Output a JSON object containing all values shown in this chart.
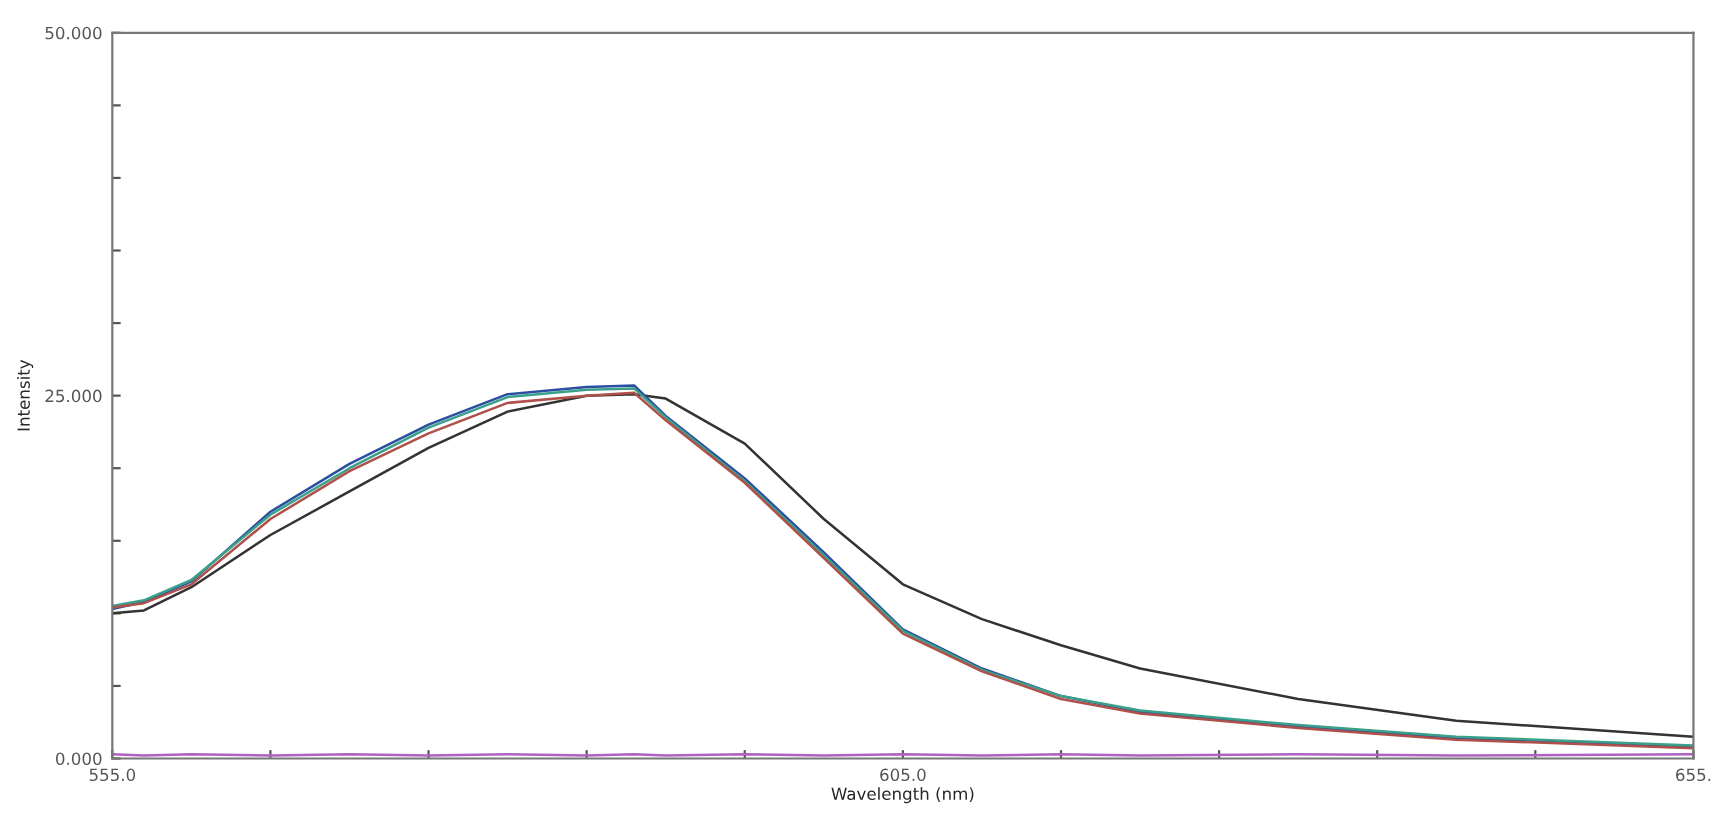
{
  "chart_data": {
    "type": "line",
    "xlabel": "Wavelength (nm)",
    "ylabel": "Intensity",
    "xlim": [
      555,
      655
    ],
    "ylim": [
      0,
      50
    ],
    "xticks": [
      {
        "value": 555,
        "label": "555.0"
      },
      {
        "value": 565,
        "label": null
      },
      {
        "value": 575,
        "label": null
      },
      {
        "value": 585,
        "label": null
      },
      {
        "value": 595,
        "label": null
      },
      {
        "value": 605,
        "label": "605.0"
      },
      {
        "value": 615,
        "label": null
      },
      {
        "value": 625,
        "label": null
      },
      {
        "value": 635,
        "label": null
      },
      {
        "value": 645,
        "label": null
      },
      {
        "value": 655,
        "label": "655."
      }
    ],
    "yticks": [
      {
        "value": 0,
        "label": "0.000"
      },
      {
        "value": 5,
        "label": null
      },
      {
        "value": 10,
        "label": null
      },
      {
        "value": 15,
        "label": null
      },
      {
        "value": 20,
        "label": null
      },
      {
        "value": 25,
        "label": "25.000"
      },
      {
        "value": 30,
        "label": null
      },
      {
        "value": 35,
        "label": null
      },
      {
        "value": 40,
        "label": null
      },
      {
        "value": 45,
        "label": null
      },
      {
        "value": 50,
        "label": "50.000"
      }
    ],
    "grid": false,
    "line_style": "solid",
    "marker": "none",
    "x": [
      555,
      557,
      560,
      565,
      570,
      575,
      580,
      585,
      588,
      590,
      595,
      600,
      605,
      610,
      615,
      620,
      630,
      640,
      655
    ],
    "series": [
      {
        "color": "#333333",
        "values": [
          10.0,
          10.2,
          11.8,
          15.4,
          18.4,
          21.4,
          23.9,
          25.0,
          25.1,
          24.8,
          21.7,
          16.5,
          12.0,
          9.6,
          7.8,
          6.2,
          4.1,
          2.6,
          1.5
        ]
      },
      {
        "color": "#2a4fa0",
        "values": [
          10.3,
          10.8,
          12.2,
          17.0,
          20.3,
          23.0,
          25.1,
          25.6,
          25.7,
          23.6,
          19.3,
          14.2,
          8.9,
          6.2,
          4.3,
          3.2,
          2.2,
          1.4,
          0.8
        ]
      },
      {
        "color": "#3aa08a",
        "values": [
          10.5,
          10.9,
          12.3,
          16.8,
          20.0,
          22.8,
          24.9,
          25.4,
          25.5,
          23.5,
          19.1,
          14.0,
          8.8,
          6.1,
          4.3,
          3.3,
          2.3,
          1.5,
          0.9
        ]
      },
      {
        "color": "#b0504a",
        "values": [
          10.4,
          10.7,
          12.0,
          16.5,
          19.8,
          22.4,
          24.5,
          25.0,
          25.2,
          23.3,
          19.0,
          13.8,
          8.6,
          6.0,
          4.1,
          3.1,
          2.1,
          1.3,
          0.7
        ]
      },
      {
        "color": "#b060c0",
        "values": [
          0.3,
          0.2,
          0.3,
          0.2,
          0.3,
          0.2,
          0.3,
          0.2,
          0.3,
          0.2,
          0.3,
          0.2,
          0.3,
          0.2,
          0.3,
          0.2,
          0.3,
          0.2,
          0.3
        ]
      }
    ]
  }
}
